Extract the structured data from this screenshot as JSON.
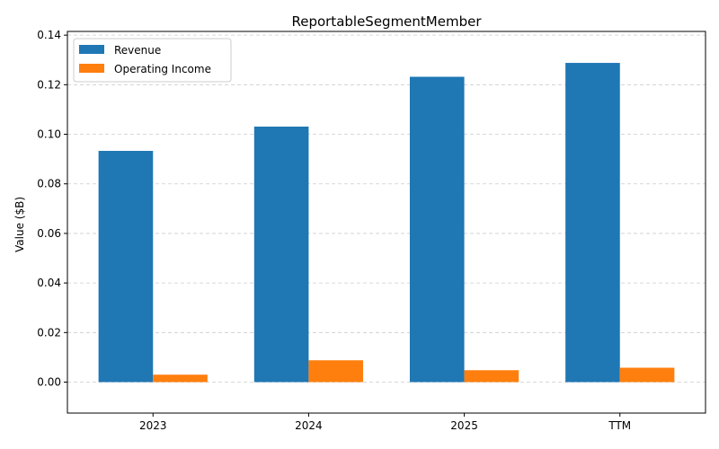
{
  "chart_data": {
    "type": "bar",
    "title": "ReportableSegmentMember",
    "xlabel": "",
    "ylabel": "Value ($B)",
    "categories": [
      "2023",
      "2024",
      "2025",
      "TTM"
    ],
    "series": [
      {
        "name": "Revenue",
        "values": [
          0.0933,
          0.1031,
          0.1232,
          0.1288
        ],
        "color": "#1f77b4"
      },
      {
        "name": "Operating Income",
        "values": [
          0.003,
          0.0088,
          0.0048,
          0.0058
        ],
        "color": "#ff7f0e"
      }
    ],
    "ylim": [
      -0.0125,
      0.1415
    ],
    "yticks": [
      "0.00",
      "0.02",
      "0.04",
      "0.06",
      "0.08",
      "0.10",
      "0.12",
      "0.14"
    ],
    "grid": "y-dashed",
    "legend_position": "top-left"
  }
}
